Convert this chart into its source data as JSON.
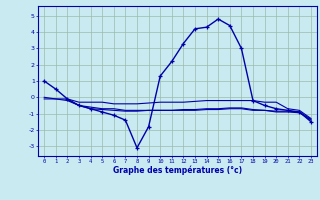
{
  "title": "Graphe des températures (°c)",
  "bg_color": "#c8eaf0",
  "grid_color": "#aaccaa",
  "line_color": "#0000aa",
  "xlim": [
    -0.5,
    23.5
  ],
  "ylim": [
    -3.6,
    5.6
  ],
  "yticks": [
    -3,
    -2,
    -1,
    0,
    1,
    2,
    3,
    4,
    5
  ],
  "xticks": [
    0,
    1,
    2,
    3,
    4,
    5,
    6,
    7,
    8,
    9,
    10,
    11,
    12,
    13,
    14,
    15,
    16,
    17,
    18,
    19,
    20,
    21,
    22,
    23
  ],
  "main_x": [
    0,
    1,
    2,
    3,
    4,
    5,
    6,
    7,
    8,
    9,
    10,
    11,
    12,
    13,
    14,
    15,
    16,
    17,
    18,
    19,
    20,
    21,
    22,
    23
  ],
  "main_y": [
    1.0,
    0.5,
    -0.1,
    -0.5,
    -0.7,
    -0.9,
    -1.1,
    -1.4,
    -3.1,
    -1.8,
    1.3,
    2.2,
    3.3,
    4.2,
    4.3,
    4.8,
    4.4,
    3.0,
    -0.2,
    -0.5,
    -0.7,
    -0.8,
    -0.9,
    -1.5
  ],
  "flat1_x": [
    0,
    1,
    2,
    3,
    4,
    5,
    6,
    7,
    8,
    9,
    10,
    11,
    12,
    13,
    14,
    15,
    16,
    17,
    18,
    19,
    20,
    21,
    22,
    23
  ],
  "flat1_y": [
    0.0,
    -0.1,
    -0.1,
    -0.3,
    -0.3,
    -0.3,
    -0.4,
    -0.4,
    -0.4,
    -0.35,
    -0.3,
    -0.3,
    -0.3,
    -0.25,
    -0.2,
    -0.2,
    -0.2,
    -0.2,
    -0.2,
    -0.3,
    -0.3,
    -0.7,
    -0.8,
    -1.3
  ],
  "flat2_x": [
    0,
    1,
    2,
    3,
    4,
    5,
    6,
    7,
    8,
    9,
    10,
    11,
    12,
    13,
    14,
    15,
    16,
    17,
    18,
    19,
    20,
    21,
    22,
    23
  ],
  "flat2_y": [
    -0.1,
    -0.1,
    -0.2,
    -0.5,
    -0.6,
    -0.7,
    -0.7,
    -0.8,
    -0.8,
    -0.8,
    -0.8,
    -0.8,
    -0.8,
    -0.8,
    -0.75,
    -0.75,
    -0.7,
    -0.7,
    -0.8,
    -0.8,
    -0.9,
    -0.9,
    -0.95,
    -1.4
  ],
  "flat3_x": [
    2,
    3,
    4,
    5,
    6,
    7,
    8,
    9,
    10,
    11,
    12,
    13,
    14,
    15,
    16,
    17,
    18,
    19,
    20,
    21,
    22,
    23
  ],
  "flat3_y": [
    -0.15,
    -0.5,
    -0.7,
    -0.75,
    -0.8,
    -0.85,
    -0.85,
    -0.8,
    -0.8,
    -0.8,
    -0.75,
    -0.75,
    -0.7,
    -0.7,
    -0.65,
    -0.65,
    -0.75,
    -0.8,
    -0.85,
    -0.85,
    -0.9,
    -1.35
  ]
}
